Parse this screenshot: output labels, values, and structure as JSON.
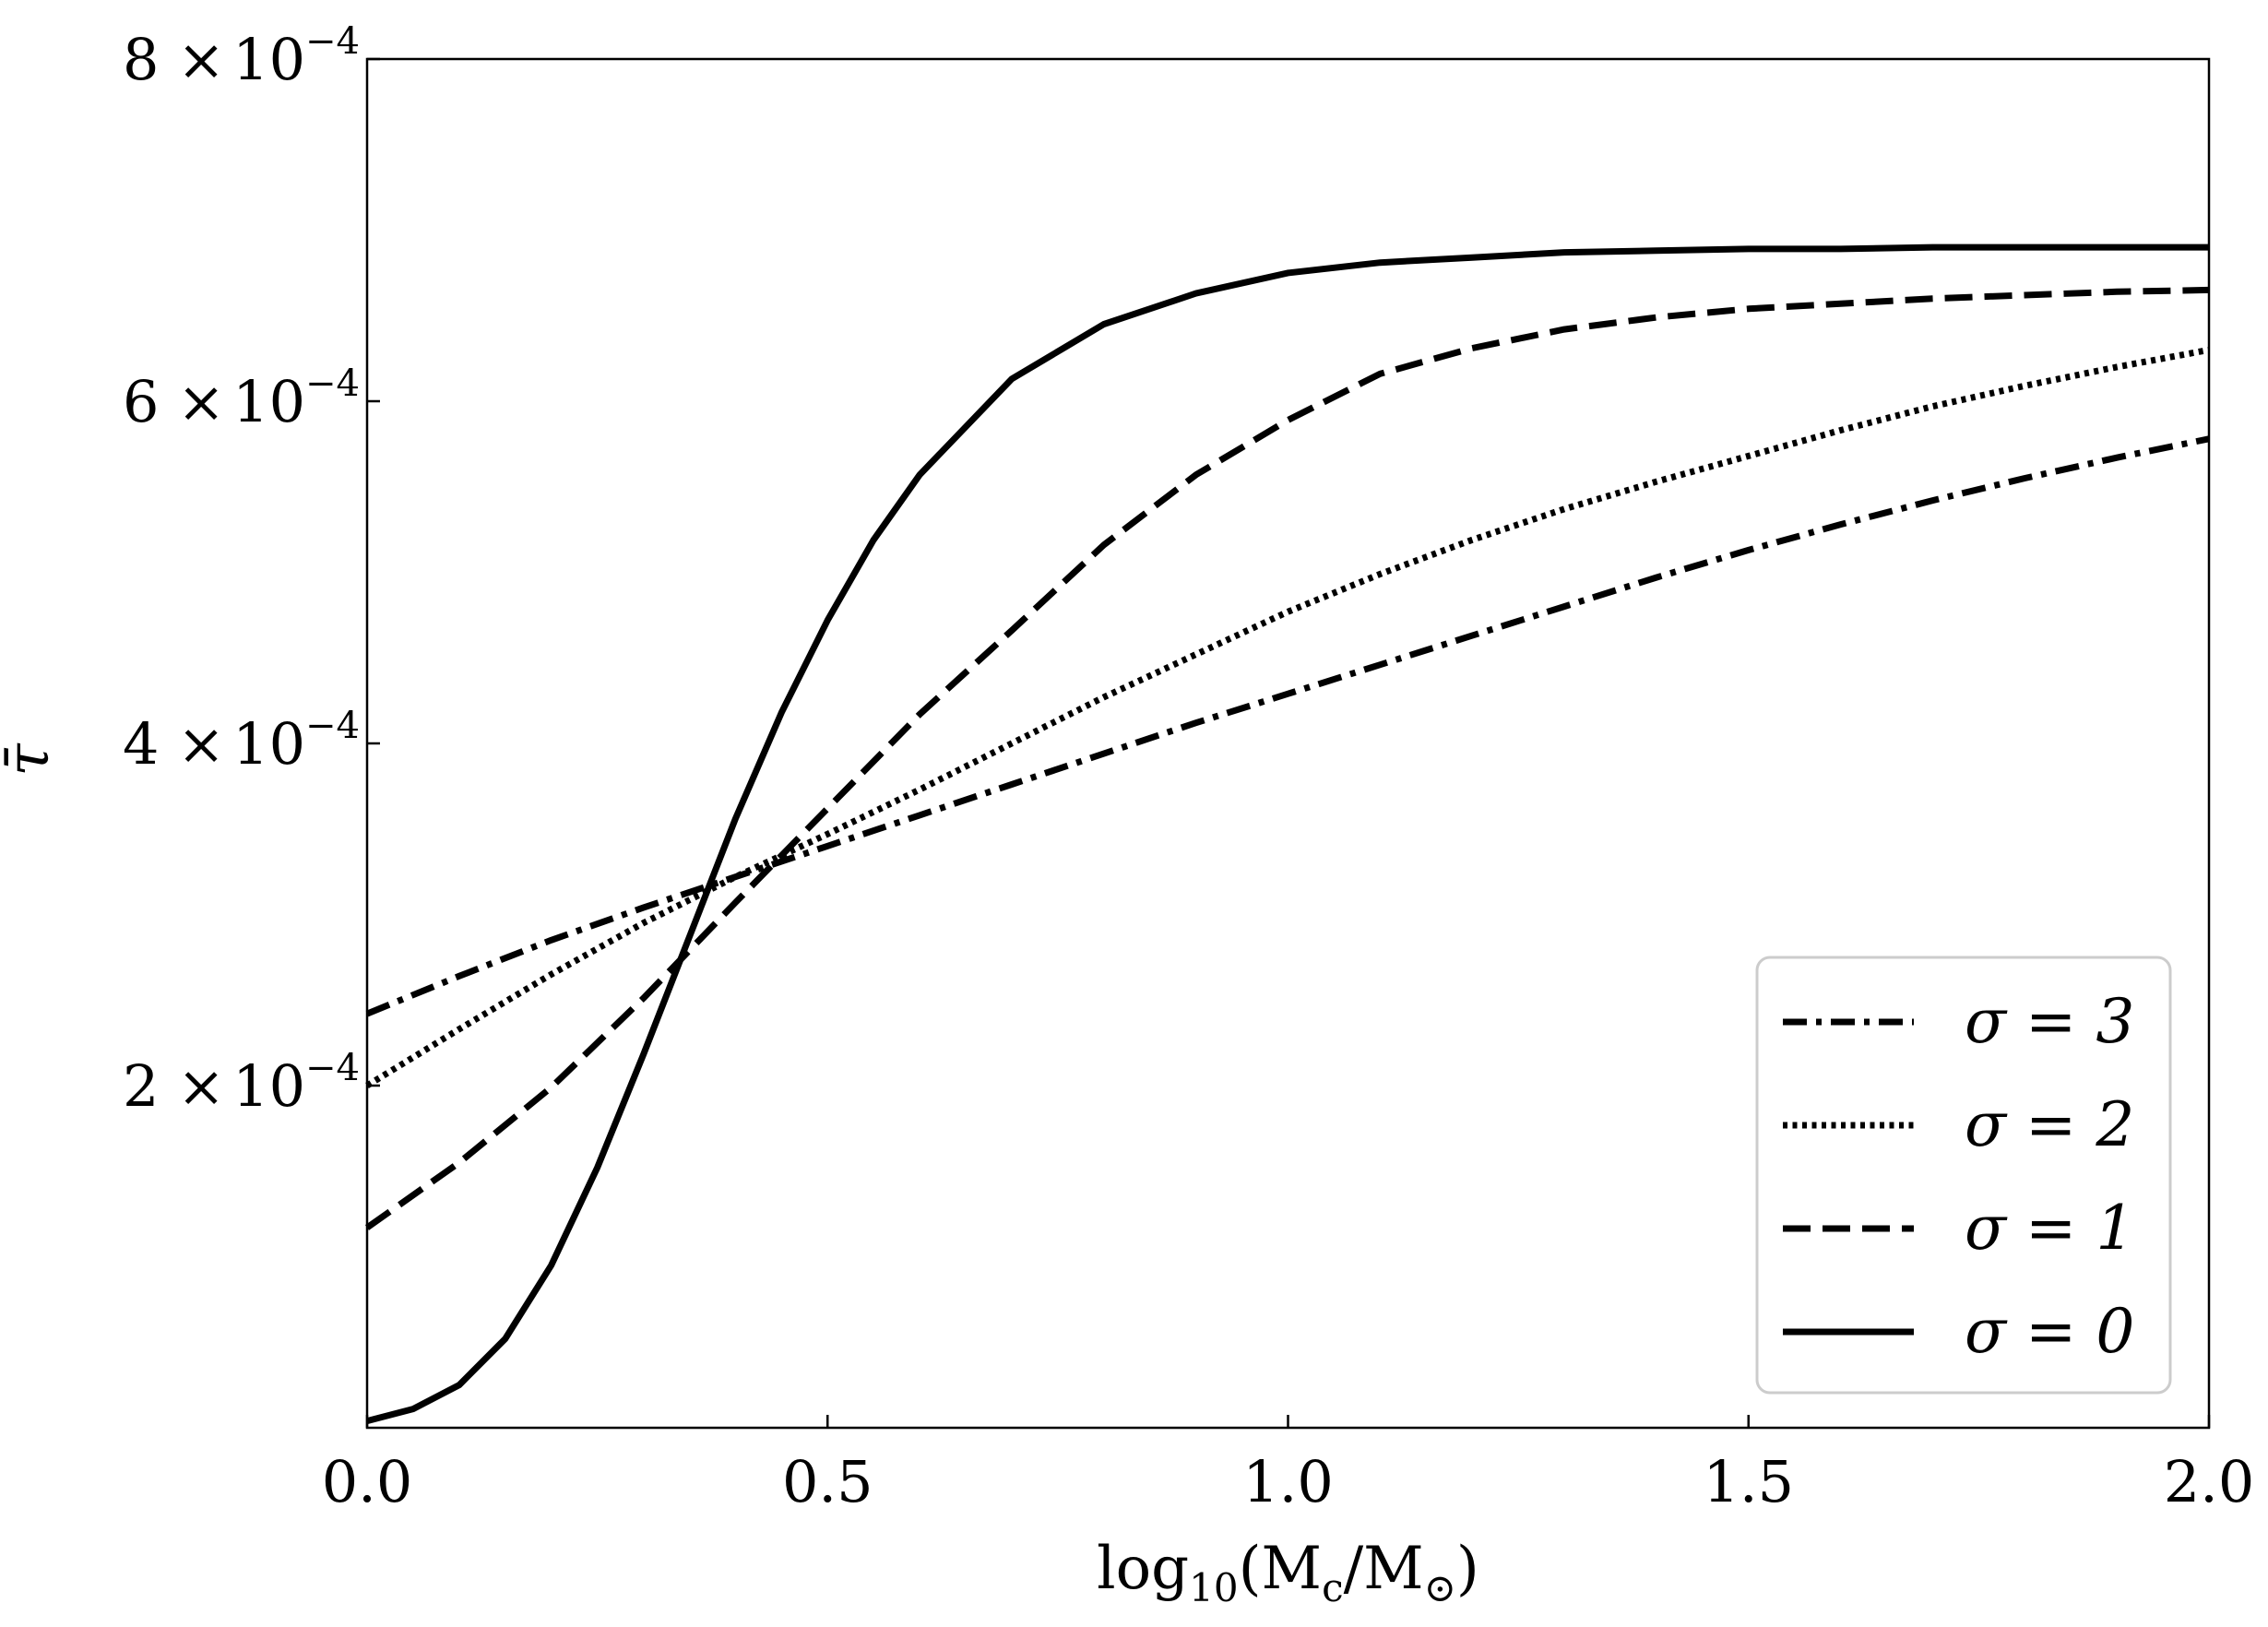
{
  "chart_data": {
    "type": "line",
    "title": "",
    "xlabel_parts": {
      "pre": "log",
      "sub": "10",
      "mid": "(M",
      "sub2": "c",
      "slash": "/M",
      "sub3": "⊙",
      "post": ")"
    },
    "ylabel": "τ̄",
    "xlim": [
      0.0,
      2.0
    ],
    "ylim": [
      0.0,
      0.0008
    ],
    "xticks": [
      {
        "value": 0.0,
        "label": "0.0"
      },
      {
        "value": 0.5,
        "label": "0.5"
      },
      {
        "value": 1.0,
        "label": "1.0"
      },
      {
        "value": 1.5,
        "label": "1.5"
      },
      {
        "value": 2.0,
        "label": "2.0"
      }
    ],
    "yticks": [
      {
        "value": 0.0002,
        "mant": "2",
        "times": "×",
        "base": "10",
        "exp": "−4"
      },
      {
        "value": 0.0004,
        "mant": "4",
        "times": "×",
        "base": "10",
        "exp": "−4"
      },
      {
        "value": 0.0006,
        "mant": "6",
        "times": "×",
        "base": "10",
        "exp": "−4"
      },
      {
        "value": 0.0008,
        "mant": "8",
        "times": "×",
        "base": "10",
        "exp": "−4"
      }
    ],
    "grid": false,
    "legend_position": "bottom-right",
    "series": [
      {
        "name": "σ = 3",
        "style": "dashdot",
        "color": "#000000",
        "x": [
          0.0,
          0.1,
          0.2,
          0.3,
          0.4,
          0.5,
          0.6,
          0.7,
          0.8,
          0.9,
          1.0,
          1.1,
          1.2,
          1.3,
          1.4,
          1.5,
          1.6,
          1.7,
          1.8,
          1.9,
          2.0
        ],
        "y": [
          0.000242,
          0.000264,
          0.000285,
          0.000304,
          0.000322,
          0.00034,
          0.000358,
          0.000376,
          0.000394,
          0.000412,
          0.000429,
          0.000446,
          0.000463,
          0.00048,
          0.000497,
          0.000513,
          0.000528,
          0.000542,
          0.000555,
          0.000567,
          0.000578
        ]
      },
      {
        "name": "σ = 2",
        "style": "dotted",
        "color": "#000000",
        "x": [
          0.0,
          0.1,
          0.2,
          0.3,
          0.4,
          0.5,
          0.6,
          0.7,
          0.8,
          0.9,
          1.0,
          1.1,
          1.2,
          1.3,
          1.4,
          1.5,
          1.6,
          1.7,
          1.8,
          1.9,
          2.0
        ],
        "y": [
          0.0002,
          0.000233,
          0.000265,
          0.000295,
          0.000322,
          0.000347,
          0.000373,
          0.0004,
          0.000427,
          0.000452,
          0.000477,
          0.000499,
          0.000519,
          0.000537,
          0.000553,
          0.000568,
          0.000583,
          0.000597,
          0.000609,
          0.00062,
          0.00063
        ]
      },
      {
        "name": "σ = 1",
        "style": "dashed",
        "color": "#000000",
        "x": [
          0.0,
          0.1,
          0.2,
          0.3,
          0.4,
          0.5,
          0.6,
          0.7,
          0.8,
          0.9,
          1.0,
          1.1,
          1.2,
          1.3,
          1.4,
          1.5,
          1.6,
          1.7,
          1.8,
          1.9,
          2.0
        ],
        "y": [
          0.000117,
          0.000155,
          0.000199,
          0.000251,
          0.000307,
          0.000362,
          0.000417,
          0.000466,
          0.000516,
          0.000557,
          0.000589,
          0.000616,
          0.000631,
          0.000642,
          0.000649,
          0.000654,
          0.000657,
          0.00066,
          0.000662,
          0.000664,
          0.000665
        ]
      },
      {
        "name": "σ = 0",
        "style": "solid",
        "color": "#000000",
        "x": [
          0.0,
          0.05,
          0.1,
          0.15,
          0.2,
          0.25,
          0.3,
          0.35,
          0.4,
          0.45,
          0.5,
          0.55,
          0.6,
          0.7,
          0.8,
          0.9,
          1.0,
          1.1,
          1.2,
          1.3,
          1.4,
          1.5,
          1.6,
          1.7,
          1.8,
          1.9,
          2.0
        ],
        "y": [
          4e-06,
          1.1e-05,
          2.5e-05,
          5.2e-05,
          9.5e-05,
          0.000152,
          0.000218,
          0.000287,
          0.000356,
          0.000418,
          0.000472,
          0.000519,
          0.000557,
          0.000613,
          0.000645,
          0.000663,
          0.000675,
          0.000681,
          0.000684,
          0.000687,
          0.000688,
          0.000689,
          0.000689,
          0.00069,
          0.00069,
          0.00069,
          0.00069
        ]
      }
    ]
  }
}
